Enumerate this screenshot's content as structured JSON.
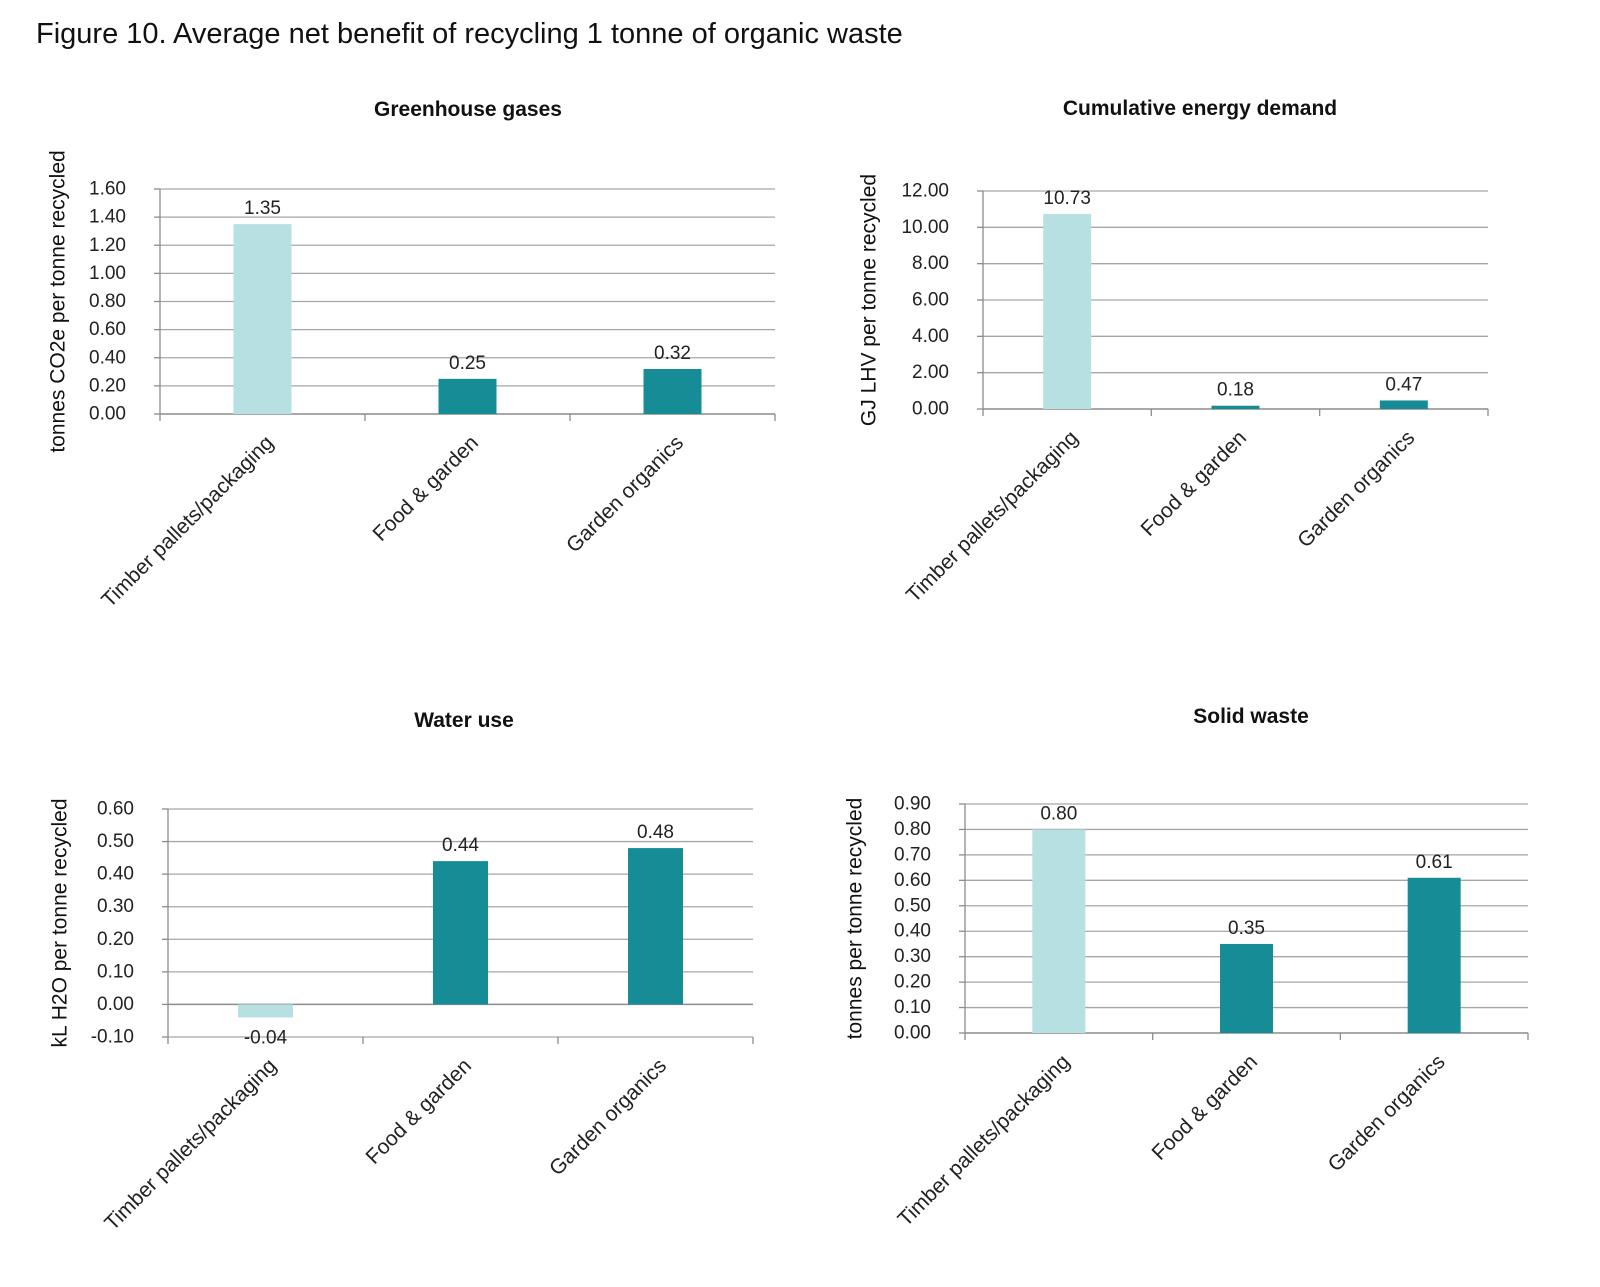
{
  "figure_title": "Figure 10. Average net benefit of recycling 1 tonne of organic waste",
  "colors": {
    "light": "#b7e0e2",
    "dark": "#168c96",
    "grid": "#a6a6a6",
    "axis": "#8c8c8c"
  },
  "chart_data": [
    {
      "type": "bar",
      "title": "Greenhouse gases",
      "ylabel": "tonnes CO2e per tonne recycled",
      "categories": [
        "Timber pallets/packaging",
        "Food & garden",
        "Garden organics"
      ],
      "values": [
        1.35,
        0.25,
        0.32
      ],
      "value_labels": [
        "1.35",
        "0.25",
        "0.32"
      ],
      "bar_colors": [
        "light",
        "dark",
        "dark"
      ],
      "ylim": [
        0,
        1.6
      ],
      "yticks": [
        "0.00",
        "0.20",
        "0.40",
        "0.60",
        "0.80",
        "1.00",
        "1.20",
        "1.40",
        "1.60"
      ],
      "grid": true
    },
    {
      "type": "bar",
      "title": "Cumulative energy demand",
      "ylabel": "GJ LHV per tonne recycled",
      "categories": [
        "Timber pallets/packaging",
        "Food & garden",
        "Garden organics"
      ],
      "values": [
        10.73,
        0.18,
        0.47
      ],
      "value_labels": [
        "10.73",
        "0.18",
        "0.47"
      ],
      "bar_colors": [
        "light",
        "dark",
        "dark"
      ],
      "ylim": [
        0,
        12
      ],
      "yticks": [
        "0.00",
        "2.00",
        "4.00",
        "6.00",
        "8.00",
        "10.00",
        "12.00"
      ],
      "grid": true
    },
    {
      "type": "bar",
      "title": "Water use",
      "ylabel": "kL H2O per tonne recycled",
      "categories": [
        "Timber pallets/packaging",
        "Food & garden",
        "Garden organics"
      ],
      "values": [
        -0.04,
        0.44,
        0.48
      ],
      "value_labels": [
        "-0.04",
        "0.44",
        "0.48"
      ],
      "bar_colors": [
        "light",
        "dark",
        "dark"
      ],
      "ylim": [
        -0.1,
        0.6
      ],
      "yticks": [
        "-0.10",
        "0.00",
        "0.10",
        "0.20",
        "0.30",
        "0.40",
        "0.50",
        "0.60"
      ],
      "grid": true
    },
    {
      "type": "bar",
      "title": "Solid waste",
      "ylabel": "tonnes per tonne recycled",
      "categories": [
        "Timber pallets/packaging",
        "Food & garden",
        "Garden organics"
      ],
      "values": [
        0.8,
        0.35,
        0.61
      ],
      "value_labels": [
        "0.80",
        "0.35",
        "0.61"
      ],
      "bar_colors": [
        "light",
        "dark",
        "dark"
      ],
      "ylim": [
        0,
        0.9
      ],
      "yticks": [
        "0.00",
        "0.10",
        "0.20",
        "0.30",
        "0.40",
        "0.50",
        "0.60",
        "0.70",
        "0.80",
        "0.90"
      ],
      "grid": true
    }
  ]
}
